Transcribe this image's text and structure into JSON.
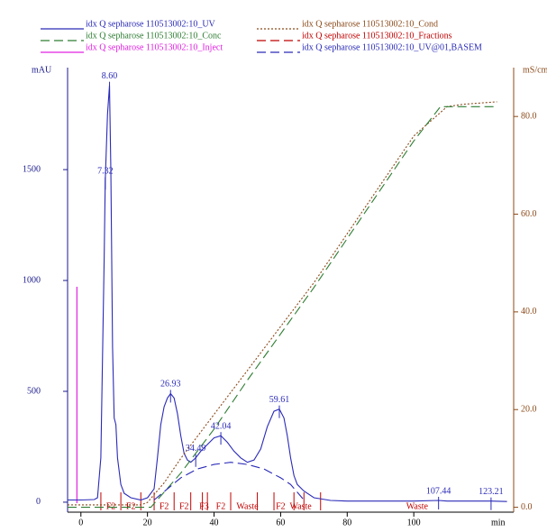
{
  "chart_data": {
    "type": "line",
    "x_label": "min",
    "y_label": "mAU",
    "y2_label": "mS/cm",
    "xlim": [
      -4,
      130
    ],
    "xticks": [
      0,
      20,
      40,
      60,
      80,
      100
    ],
    "ylim": [
      -45,
      1960
    ],
    "yticks": [
      0,
      500,
      1000,
      1500
    ],
    "y2lim": [
      -1,
      90
    ],
    "y2ticks": [
      {
        "value": 0,
        "label": "0.0"
      },
      {
        "value": 20,
        "label": "20.0"
      },
      {
        "value": 40,
        "label": "40.0"
      },
      {
        "value": 60,
        "label": "60.0"
      },
      {
        "value": 80,
        "label": "80.0"
      }
    ],
    "series": [
      {
        "name": "idx Q sepharose 110513002:10_UV",
        "color": "#2a2ab8",
        "dash": "solid",
        "x": [
          -4,
          0,
          4,
          5,
          6,
          7,
          7.32,
          8,
          8.6,
          9,
          9.5,
          10,
          10.5,
          11,
          12,
          13,
          15,
          18,
          20,
          22,
          23,
          24,
          25,
          26,
          26.93,
          28,
          29,
          30,
          31,
          32,
          33,
          34.49,
          36,
          38,
          40,
          42.04,
          44,
          46,
          48,
          50,
          52,
          54,
          56,
          58,
          59.61,
          61,
          62,
          63,
          64,
          65,
          67,
          70,
          75,
          80,
          100,
          107.44,
          110,
          123.21,
          128
        ],
        "values": [
          10,
          10,
          12,
          20,
          200,
          1100,
          1450,
          1750,
          1880,
          1500,
          700,
          380,
          350,
          200,
          80,
          40,
          20,
          10,
          20,
          60,
          200,
          350,
          430,
          470,
          490,
          470,
          400,
          300,
          220,
          190,
          180,
          200,
          230,
          260,
          290,
          300,
          270,
          230,
          200,
          180,
          190,
          240,
          340,
          410,
          420,
          380,
          300,
          200,
          120,
          80,
          50,
          20,
          8,
          5,
          5,
          8,
          5,
          5,
          3
        ]
      },
      {
        "name": "idx Q sepharose 110513002:10_Cond",
        "color": "#8b4a1a",
        "dash": "dotted",
        "axis": "y2",
        "x": [
          -4,
          18,
          20,
          25,
          30,
          40,
          50,
          60,
          70,
          80,
          90,
          100,
          110,
          115,
          125
        ],
        "values": [
          0.5,
          0.5,
          1,
          5,
          10,
          19,
          28,
          37,
          46,
          56,
          66,
          76,
          82,
          82.5,
          83
        ]
      },
      {
        "name": "idx Q sepharose 110513002:10_Conc",
        "color": "#2e7d32",
        "dash": "dashed",
        "axis": "y2",
        "x": [
          -4,
          21,
          30,
          40,
          50,
          60,
          70,
          80,
          90,
          100,
          108,
          125
        ],
        "values": [
          0,
          0,
          7,
          16,
          26,
          35.5,
          45,
          55,
          65,
          75,
          82,
          82
        ]
      },
      {
        "name": "idx Q sepharose 110513002:10_UV@01,BASEM",
        "color": "#2a2ab8",
        "dash": "dashed",
        "x": [
          22,
          26,
          30,
          35,
          40,
          45,
          50,
          55,
          60,
          63,
          67
        ],
        "values": [
          10,
          60,
          110,
          150,
          170,
          180,
          170,
          150,
          110,
          80,
          10
        ]
      }
    ],
    "fractions": {
      "name": "idx Q sepharose 110513002:10_Fractions",
      "color": "#c00000",
      "x": [
        6,
        12,
        18,
        22,
        28,
        33,
        36.5,
        38,
        45,
        53,
        58,
        64,
        67,
        72
      ],
      "label_x": [
        9,
        15,
        25,
        31,
        37,
        42,
        50,
        60,
        66,
        101
      ],
      "labels": [
        "F2",
        "F2",
        "F2",
        "F2",
        "F3",
        "F2",
        "Waste",
        "F2",
        "Waste",
        "Waste"
      ]
    },
    "inject": {
      "name": "idx Q sepharose 110513002:10_Inject",
      "color": "#e020e0",
      "x": -1.2
    },
    "peaks": {
      "x": [
        8.6,
        7.32,
        26.93,
        34.49,
        42.04,
        59.61,
        107.44,
        123.21
      ],
      "x_labels": [
        "8.60",
        "7.32",
        "26.93",
        "34.49",
        "42.04",
        "59.61",
        "107.44",
        "123.21"
      ],
      "values": [
        1880,
        1450,
        490,
        200,
        300,
        420,
        8,
        5
      ]
    }
  }
}
